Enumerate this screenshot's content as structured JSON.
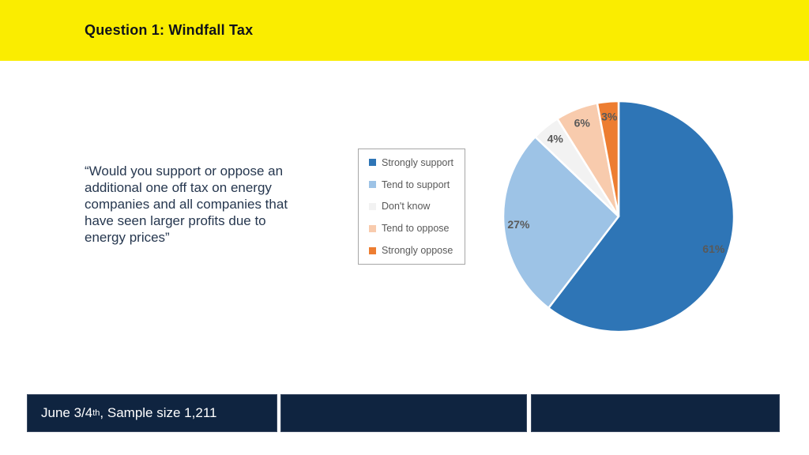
{
  "theme": {
    "yellow": "#FAED00",
    "navy": "#0F2440",
    "title-text": "#10131B",
    "quote-text": "#26374F",
    "legend-text": "#595959",
    "legend-border": "#A6A6A6",
    "footer-text": "#FFFFFF"
  },
  "header": {
    "title": "Question 1: Windfall Tax"
  },
  "quote": {
    "full_text": "“Would you support or oppose an additional one off tax on energy companies and all companies that have seen larger profits due to energy prices”",
    "lines": [
      "“Would you support or oppose an",
      "additional one off tax on energy",
      "companies and all companies that",
      "have seen larger profits due to",
      "energy prices”"
    ]
  },
  "chart_data": {
    "type": "pie",
    "title": "",
    "labels": [
      "Strongly support",
      "Tend to support",
      "Don't know",
      "Tend to oppose",
      "Strongly oppose"
    ],
    "values": [
      61,
      27,
      4,
      6,
      3
    ],
    "value_labels": [
      "61%",
      "27%",
      "4%",
      "6%",
      "3%"
    ],
    "colors": [
      "#2E75B6",
      "#9DC3E6",
      "#F2F2F2",
      "#F8CBAD",
      "#ED7D31"
    ],
    "label_color": "#595959",
    "start_angle_deg": 0,
    "direction": "clockwise",
    "legend_position": "left-of-chart",
    "slice_separator_color": "#FFFFFF"
  },
  "footer": {
    "text_prefix": "June 3/4",
    "text_superscript": "th",
    "text_suffix": ", Sample size 1,211"
  }
}
